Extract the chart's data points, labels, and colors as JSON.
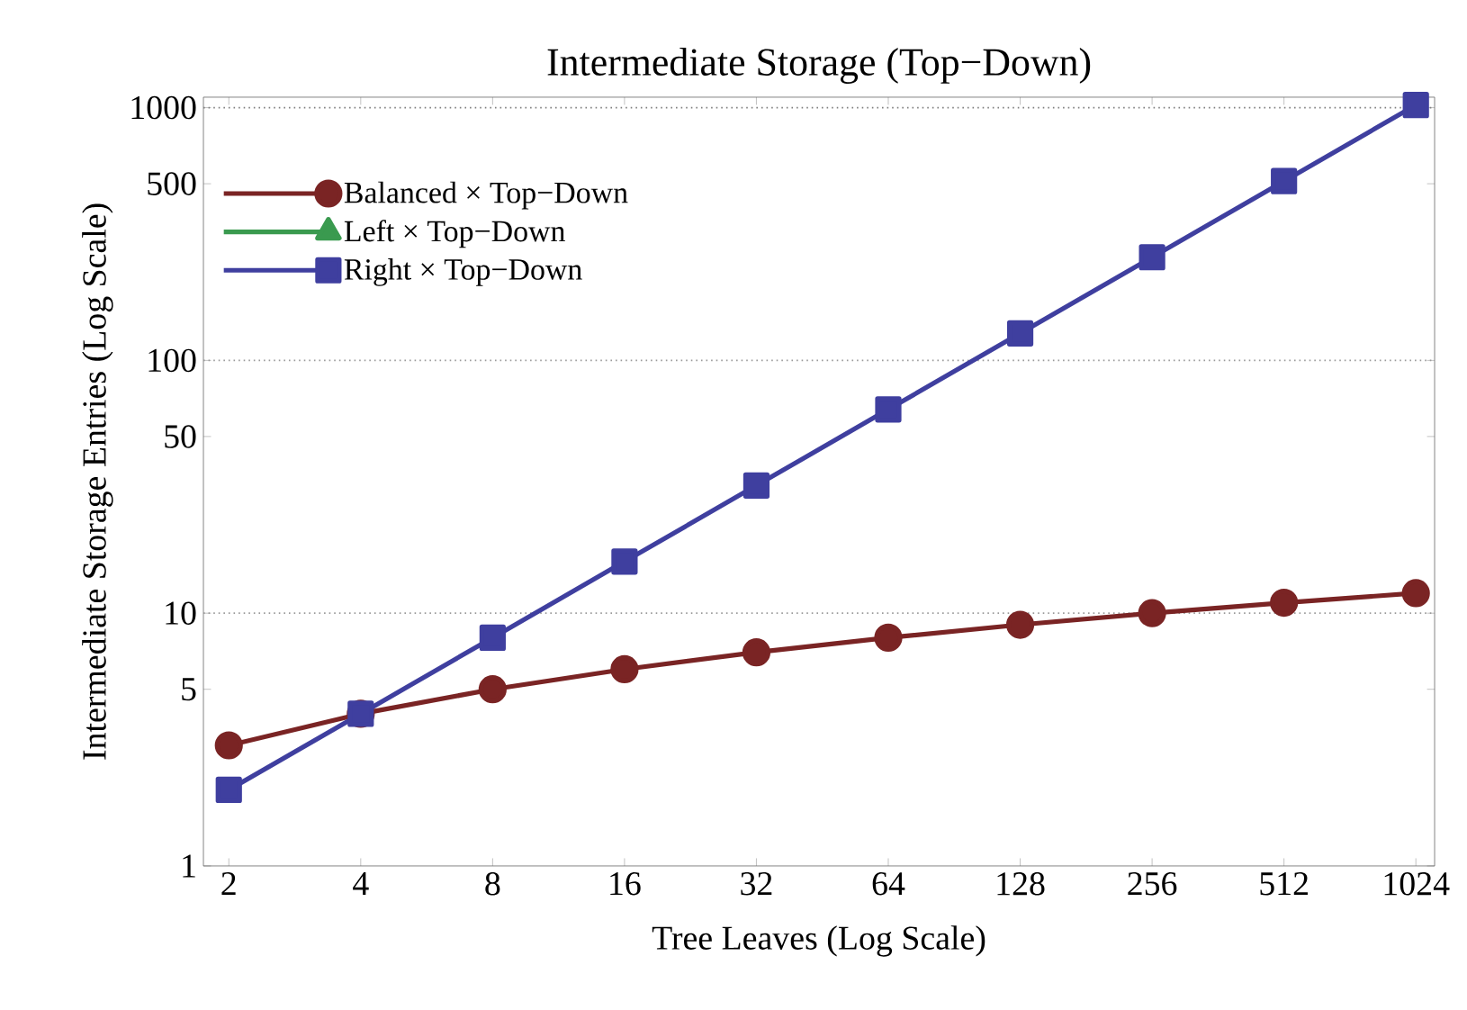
{
  "chart_data": {
    "type": "line",
    "title": "Intermediate Storage (Top−Down)",
    "xlabel": "Tree Leaves (Log Scale)",
    "ylabel": "Intermediate Storage Entries (Log Scale)",
    "log": "xy",
    "x": [
      2,
      4,
      8,
      16,
      32,
      64,
      128,
      256,
      512,
      1024
    ],
    "xlim": [
      1.75,
      1130
    ],
    "ylim": [
      1,
      1100
    ],
    "xticks": [
      2,
      4,
      8,
      16,
      32,
      64,
      128,
      256,
      512,
      1024
    ],
    "yticks": [
      1,
      5,
      10,
      50,
      100,
      500,
      1000
    ],
    "legend": "top left",
    "line_style": "solid",
    "series": [
      {
        "name": "Balanced × Top−Down",
        "color": "#7a2424",
        "marker": "circle",
        "values": [
          3,
          4,
          5,
          6,
          7,
          8,
          9,
          10,
          11,
          12
        ]
      },
      {
        "name": "Left × Top−Down",
        "color": "#3a9a4f",
        "marker": "triangle",
        "values": [
          null,
          null,
          null,
          null,
          null,
          null,
          null,
          null,
          null,
          null
        ]
      },
      {
        "name": "Right × Top−Down",
        "color": "#3f3f9f",
        "marker": "square",
        "values": [
          2,
          4,
          8,
          16,
          32,
          64,
          128,
          256,
          512,
          1024
        ]
      }
    ],
    "ref_lines": [
      {
        "axis": "y",
        "value": 10,
        "color": "#9a9a9a",
        "line_style": "dotted"
      },
      {
        "axis": "y",
        "value": 100,
        "color": "#9a9a9a",
        "line_style": "dotted"
      },
      {
        "axis": "y",
        "value": 1000,
        "color": "#808080",
        "line_style": "dotted"
      }
    ]
  }
}
